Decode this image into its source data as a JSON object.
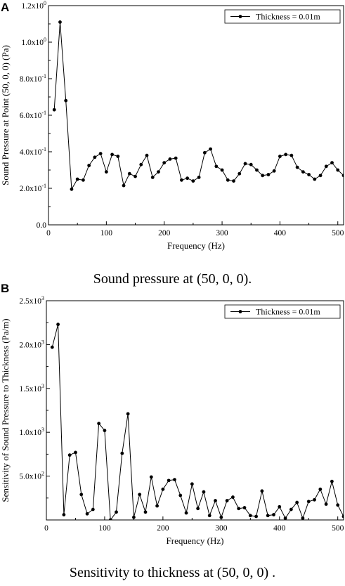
{
  "figure": {
    "panel_a_letter": "A",
    "panel_b_letter": "B",
    "caption_a_text": "Sound pressure at ",
    "caption_a_math": "(50, 0, 0).",
    "caption_b_text": "Sensitivity to thickness at ",
    "caption_b_math": "(50, 0, 0) ."
  },
  "chart_data": [
    {
      "type": "line",
      "xlabel": "Frequency (Hz)",
      "ylabel": "Sound Pressure at Point (50, 0, 0) (Pa)",
      "xlim": [
        0,
        510
      ],
      "ylim": [
        0,
        1.2
      ],
      "xticks": [
        0,
        100,
        200,
        300,
        400,
        500
      ],
      "yticks": [
        {
          "mant": "0.0",
          "exp": ""
        },
        {
          "mant": "2.0x10",
          "exp": "-1"
        },
        {
          "mant": "4.0x10",
          "exp": "-1"
        },
        {
          "mant": "6.0x10",
          "exp": "-1"
        },
        {
          "mant": "8.0x10",
          "exp": "-1"
        },
        {
          "mant": "1.0x10",
          "exp": "0"
        },
        {
          "mant": "1.2x10",
          "exp": "0"
        }
      ],
      "ytick_values": [
        0,
        0.2,
        0.4,
        0.6,
        0.8,
        1.0,
        1.2
      ],
      "legend_position": "top-right",
      "grid": false,
      "color": "#000000",
      "series": [
        {
          "name": "Thickness = 0.01m",
          "x": [
            10,
            20,
            30,
            40,
            50,
            60,
            70,
            80,
            90,
            100,
            110,
            120,
            130,
            140,
            150,
            160,
            170,
            180,
            190,
            200,
            210,
            220,
            230,
            240,
            250,
            260,
            270,
            280,
            290,
            300,
            310,
            320,
            330,
            340,
            350,
            360,
            370,
            380,
            390,
            400,
            410,
            420,
            430,
            440,
            450,
            460,
            470,
            480,
            490,
            500,
            510
          ],
          "y": [
            0.63,
            1.11,
            0.68,
            0.195,
            0.25,
            0.245,
            0.325,
            0.37,
            0.39,
            0.29,
            0.385,
            0.375,
            0.215,
            0.28,
            0.265,
            0.33,
            0.38,
            0.26,
            0.29,
            0.34,
            0.36,
            0.365,
            0.245,
            0.255,
            0.24,
            0.26,
            0.395,
            0.415,
            0.32,
            0.3,
            0.245,
            0.24,
            0.28,
            0.335,
            0.33,
            0.3,
            0.27,
            0.275,
            0.295,
            0.375,
            0.385,
            0.38,
            0.315,
            0.29,
            0.275,
            0.25,
            0.27,
            0.32,
            0.34,
            0.3,
            0.27
          ]
        }
      ]
    },
    {
      "type": "line",
      "xlabel": "Frequency (Hz)",
      "ylabel": "Sensitivity of Sound Pressure to Thickness (Pa/m)",
      "xlim": [
        0,
        510
      ],
      "ylim": [
        0,
        2500
      ],
      "xticks": [
        0,
        100,
        200,
        300,
        400,
        500
      ],
      "yticks": [
        {
          "mant": "5.0x10",
          "exp": "2"
        },
        {
          "mant": "1.0x10",
          "exp": "3"
        },
        {
          "mant": "1.5x10",
          "exp": "3"
        },
        {
          "mant": "2.0x10",
          "exp": "3"
        },
        {
          "mant": "2.5x10",
          "exp": "3"
        }
      ],
      "ytick_values": [
        500,
        1000,
        1500,
        2000,
        2500
      ],
      "legend_position": "top-right",
      "grid": false,
      "color": "#000000",
      "series": [
        {
          "name": "Thickness = 0.01m",
          "x": [
            10,
            20,
            30,
            40,
            50,
            60,
            70,
            80,
            90,
            100,
            110,
            120,
            130,
            140,
            150,
            160,
            170,
            180,
            190,
            200,
            210,
            220,
            230,
            240,
            250,
            260,
            270,
            280,
            290,
            300,
            310,
            320,
            330,
            340,
            350,
            360,
            370,
            380,
            390,
            400,
            410,
            420,
            430,
            440,
            450,
            460,
            470,
            480,
            490,
            500,
            510
          ],
          "y": [
            1970,
            2230,
            60,
            740,
            770,
            290,
            70,
            120,
            1100,
            1020,
            0,
            90,
            760,
            1210,
            30,
            290,
            90,
            490,
            160,
            350,
            450,
            460,
            280,
            80,
            410,
            130,
            320,
            50,
            220,
            30,
            220,
            260,
            130,
            140,
            50,
            40,
            330,
            50,
            60,
            150,
            20,
            120,
            200,
            20,
            210,
            230,
            350,
            180,
            440,
            170,
            40
          ]
        }
      ]
    }
  ]
}
